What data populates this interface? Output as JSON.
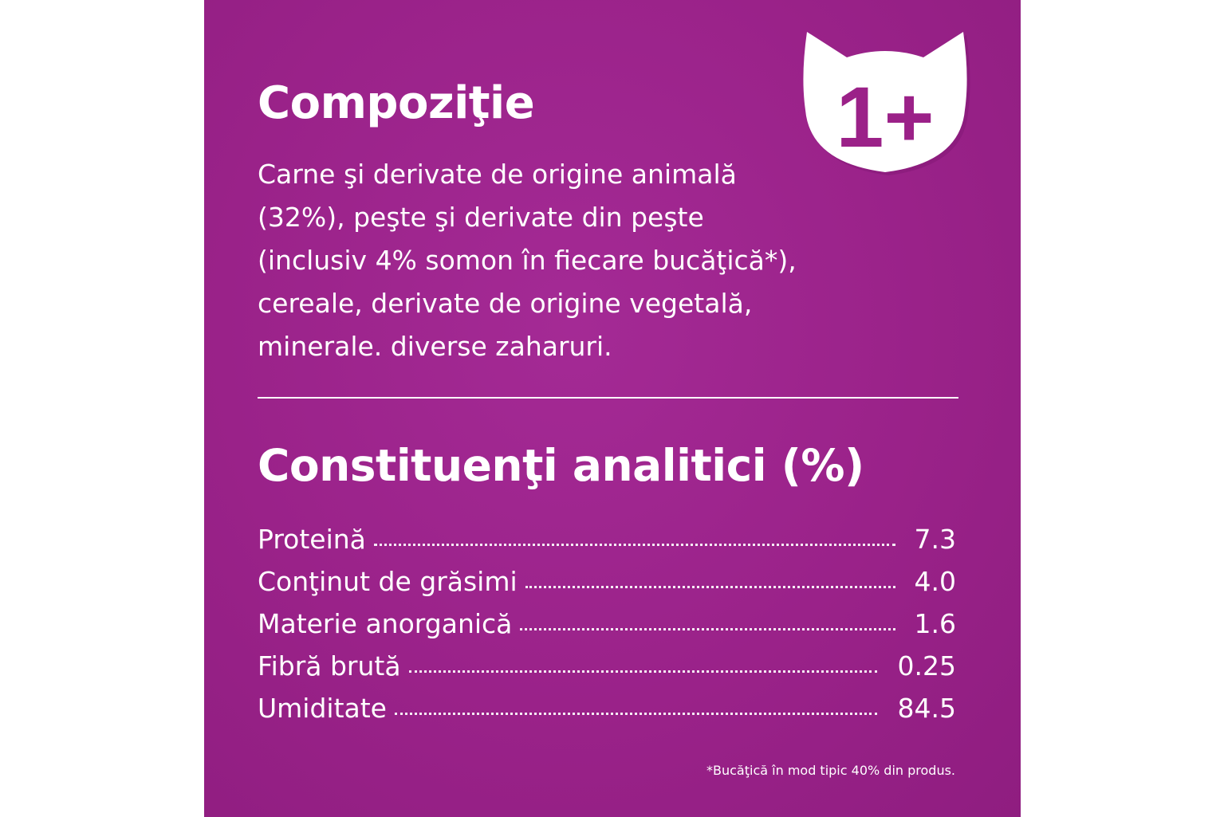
{
  "badge": {
    "text": "1+",
    "icon": "cat-head-icon",
    "text_color": "#9b2188",
    "fill_color": "#ffffff"
  },
  "composition": {
    "title": "Compoziţie",
    "lines": [
      "Carne şi derivate de origine animală",
      "(32%), peşte şi derivate din peşte",
      "(inclusiv 4% somon în fiecare bucăţică*),",
      "cereale, derivate de origine vegetală,",
      "minerale. diverse zaharuri."
    ]
  },
  "analytical": {
    "title": "Constituenţi analitici (%)",
    "rows": [
      {
        "label": "Proteină",
        "value": "7.3"
      },
      {
        "label": "Conţinut de grăsimi",
        "value": "4.0"
      },
      {
        "label": "Materie anorganică",
        "value": "1.6"
      },
      {
        "label": "Fibră brută",
        "value": "0.25"
      },
      {
        "label": "Umiditate",
        "value": "84.5"
      }
    ]
  },
  "footnote": "*Bucăţică în mod tipic 40% din produs.",
  "colors": {
    "background": "#9d2389",
    "text": "#ffffff"
  }
}
